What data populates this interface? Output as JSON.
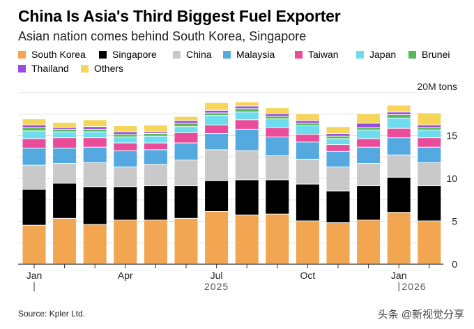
{
  "chart_data": {
    "type": "bar",
    "stacked": true,
    "title": "China Is Asia's Third Biggest Fuel Exporter",
    "subtitle": "Asian nation comes behind South Korea, Singapore",
    "unit_label": "20M tons",
    "ylim": [
      0,
      20
    ],
    "yticks": [
      {
        "value": 0,
        "label": "0"
      },
      {
        "value": 5,
        "label": "5"
      },
      {
        "value": 10,
        "label": "10"
      },
      {
        "value": 15,
        "label": "15"
      }
    ],
    "x_tick_labels": [
      {
        "index": 0,
        "label": "Jan"
      },
      {
        "index": 3,
        "label": "Apr"
      },
      {
        "index": 6,
        "label": "Jul"
      },
      {
        "index": 9,
        "label": "Oct"
      },
      {
        "index": 12,
        "label": "Jan"
      }
    ],
    "year_labels": [
      {
        "index": 6,
        "label": "2025"
      },
      {
        "index": 12.5,
        "label": "2026"
      }
    ],
    "year_dividers": [
      0,
      12
    ],
    "categories": [
      "Jan 2025",
      "Feb 2025",
      "Mar 2025",
      "Apr 2025",
      "May 2025",
      "Jun 2025",
      "Jul 2025",
      "Aug 2025",
      "Sep 2025",
      "Oct 2025",
      "Nov 2025",
      "Dec 2025",
      "Jan 2026",
      "Feb 2026"
    ],
    "series": [
      {
        "name": "South Korea",
        "color": "#f2a652",
        "values": [
          4.5,
          5.3,
          4.6,
          5.1,
          5.1,
          5.3,
          6.1,
          5.7,
          5.8,
          5.0,
          4.8,
          5.1,
          6.0,
          5.0
        ]
      },
      {
        "name": "Singapore",
        "color": "#000000",
        "values": [
          4.2,
          4.1,
          4.4,
          3.9,
          4.0,
          3.8,
          3.6,
          4.1,
          4.0,
          4.3,
          3.7,
          4.0,
          4.1,
          4.1
        ]
      },
      {
        "name": "China",
        "color": "#c9c9c9",
        "values": [
          2.8,
          2.3,
          2.8,
          2.3,
          2.5,
          3.0,
          3.6,
          3.4,
          2.8,
          2.9,
          2.8,
          2.6,
          2.6,
          2.7
        ]
      },
      {
        "name": "Malaysia",
        "color": "#53a9e0",
        "values": [
          2.0,
          1.8,
          1.8,
          1.9,
          1.7,
          2.0,
          1.9,
          2.5,
          2.2,
          2.0,
          1.8,
          1.9,
          2.0,
          1.8
        ]
      },
      {
        "name": "Taiwan",
        "color": "#e94d99",
        "values": [
          1.1,
          1.2,
          1.1,
          0.9,
          0.8,
          1.2,
          1.0,
          1.1,
          1.1,
          0.9,
          0.8,
          1.0,
          1.1,
          1.1
        ]
      },
      {
        "name": "Japan",
        "color": "#6cdcee",
        "values": [
          0.9,
          0.7,
          0.7,
          0.7,
          0.8,
          0.7,
          1.1,
          0.9,
          1.0,
          1.0,
          0.7,
          1.0,
          1.2,
          0.9
        ]
      },
      {
        "name": "Brunei",
        "color": "#55b957",
        "values": [
          0.4,
          0.3,
          0.3,
          0.3,
          0.3,
          0.4,
          0.3,
          0.4,
          0.3,
          0.3,
          0.3,
          0.3,
          0.4,
          0.3
        ]
      },
      {
        "name": "Thailand",
        "color": "#9a4bdf",
        "values": [
          0.3,
          0.2,
          0.3,
          0.3,
          0.2,
          0.3,
          0.3,
          0.3,
          0.3,
          0.3,
          0.3,
          0.5,
          0.3,
          0.3
        ]
      },
      {
        "name": "Others",
        "color": "#f6d65a",
        "values": [
          0.7,
          0.6,
          0.8,
          0.7,
          0.8,
          0.5,
          0.9,
          0.5,
          0.7,
          0.8,
          0.8,
          1.1,
          0.8,
          1.4
        ]
      }
    ]
  },
  "source": "Source: Kpler Ltd.",
  "watermark": "头条 @新视觉分享",
  "colors": {
    "grid": "#e3e3e3",
    "axis": "#333333",
    "text": "#222222"
  }
}
